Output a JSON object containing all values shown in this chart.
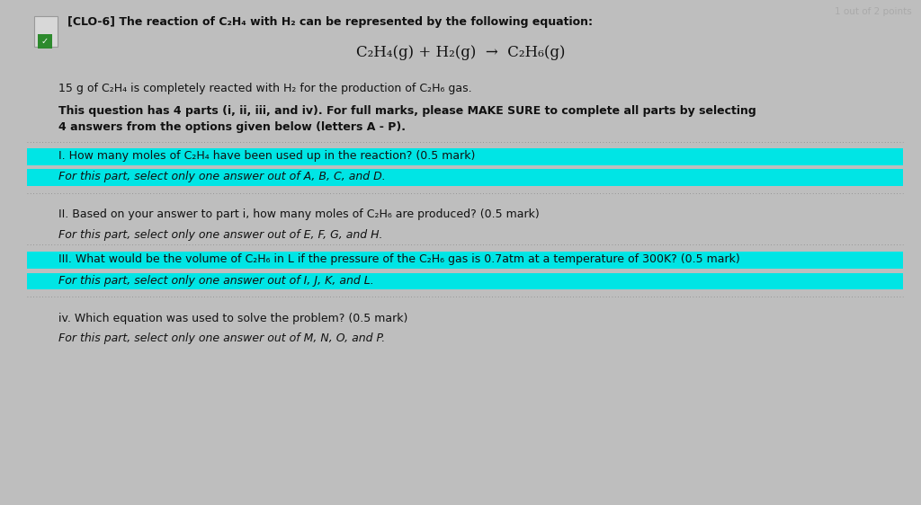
{
  "bg_color": "#bebebe",
  "cyan_color": "#00e5e5",
  "text_color": "#111111",
  "fig_width": 10.24,
  "fig_height": 5.62,
  "dpi": 100,
  "header": "[CLO-6] The reaction of C₂H₄ with H₂ can be represented by the following equation:",
  "equation": "C₂H₄(g) + H₂(g)  →  C₂H₆(g)",
  "intro1": "15 g of C₂H₄ is completely reacted with H₂ for the production of C₂H₆ gas.",
  "intro2": "This question has 4 parts (i, ii, iii, and iv). For full marks, please MAKE SURE to complete all parts by selecting",
  "intro3": "4 answers from the options given below (letters A - P).",
  "q1": "I. How many moles of C₂H₄ have been used up in the reaction? (0.5 mark)",
  "q1s": "For this part, select only one answer out of A, B, C, and D.",
  "q2": "II. Based on your answer to part i, how many moles of C₂H₆ are produced? (0.5 mark)",
  "q2s": "For this part, select only one answer out of E, F, G, and H.",
  "q3": "III. What would be the volume of C₂H₆ in L if the pressure of the C₂H₆ gas is 0.7atm at a temperature of 300K? (0.5 mark)",
  "q3s": "For this part, select only one answer out of I, J, K, and L.",
  "q4": "iv. Which equation was used to solve the problem? (0.5 mark)",
  "q4s": "For this part, select only one answer out of M, N, O, and P.",
  "top_right": "1 out of 2 points",
  "fs_body": 9.0,
  "fs_eq": 12,
  "fs_small": 7.5
}
